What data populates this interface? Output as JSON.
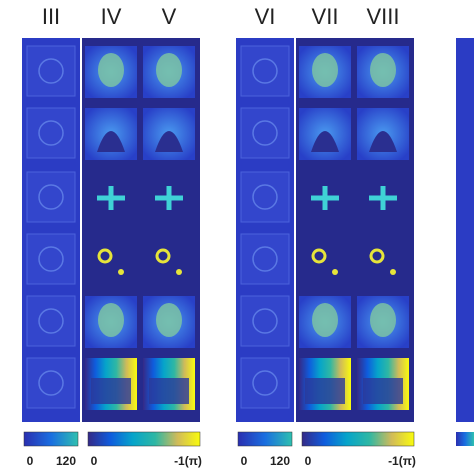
{
  "panels": [
    {
      "columns": [
        "III",
        "IV",
        "V"
      ],
      "colorbars": [
        {
          "min_label": "0",
          "max_label": "120"
        },
        {
          "min_label": "0",
          "max_label": "-1(π)"
        }
      ]
    },
    {
      "columns": [
        "VI",
        "VII",
        "VIII"
      ],
      "colorbars": [
        {
          "min_label": "0",
          "max_label": "120"
        },
        {
          "min_label": "0",
          "max_label": "-1(π)"
        }
      ]
    }
  ]
}
